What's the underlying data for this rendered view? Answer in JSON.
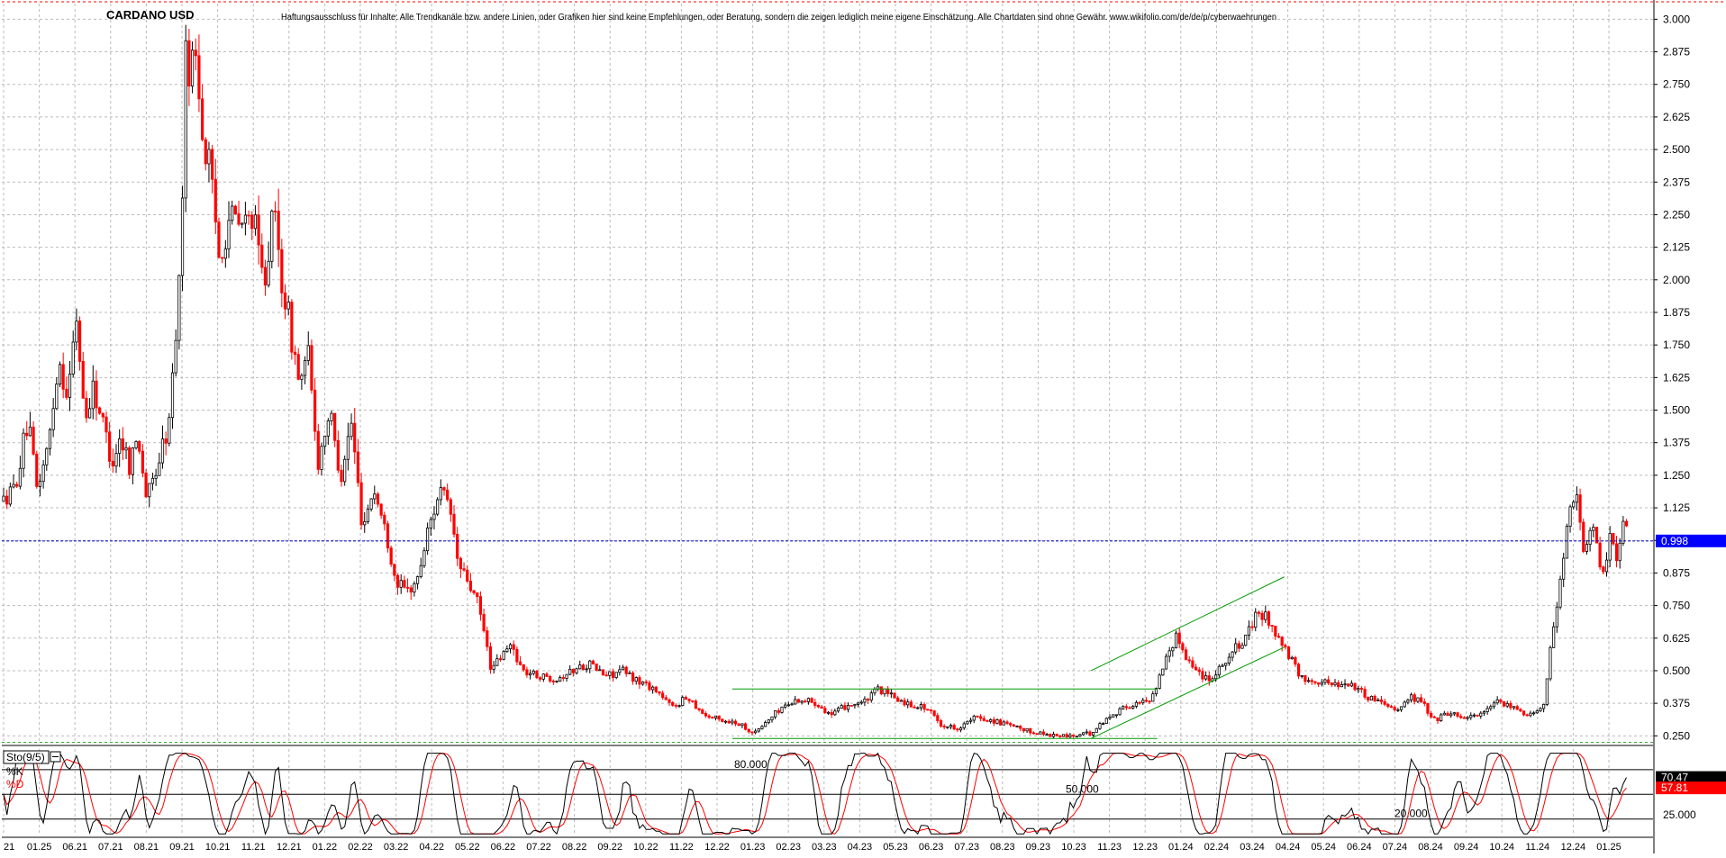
{
  "chart_data": {
    "type": "candlestick",
    "title": "CARDANO USD",
    "disclaimer": "Haftungsausschluss für Inhalte: Alle Trendkanäle bzw. andere Linien, oder Grafiken hier sind keine Empfehlungen, oder Beratung, sondern die zeigen lediglich meine eigene Einschätzung. Alle Chartdaten sind ohne Gewähr. www.wikifolio.com/de/de/p/cyberwaehrungen",
    "price_axis": {
      "range": [
        0.22,
        3.06
      ],
      "ticks": [
        "3.000",
        "2.875",
        "2.750",
        "2.625",
        "2.500",
        "2.375",
        "2.250",
        "2.125",
        "2.000",
        "1.875",
        "1.750",
        "1.625",
        "1.500",
        "1.375",
        "1.250",
        "1.125",
        "1.000",
        "0.875",
        "0.750",
        "0.625",
        "0.500",
        "0.375",
        "0.250"
      ],
      "current_price": 0.998,
      "current_price_label": "0.998"
    },
    "x_ticks": [
      "21",
      "01.25",
      "06.21",
      "07.21",
      "08.21",
      "09.21",
      "10.21",
      "11.21",
      "12.21",
      "01.22",
      "02.22",
      "03.22",
      "04.22",
      "05.22",
      "06.22",
      "07.22",
      "08.22",
      "09.22",
      "10.22",
      "11.22",
      "12.22",
      "01.23",
      "02.23",
      "03.23",
      "04.23",
      "05.23",
      "06.23",
      "07.23",
      "08.23",
      "09.23",
      "10.23",
      "11.23",
      "12.23",
      "01.24",
      "02.24",
      "03.24",
      "04.24",
      "05.24",
      "06.24",
      "07.24",
      "08.24",
      "09.24",
      "10.24",
      "11.24",
      "12.24",
      "01.25"
    ],
    "price_path": [
      {
        "t": 0,
        "p": 1.15
      },
      {
        "t": 10,
        "p": 1.2
      },
      {
        "t": 22,
        "p": 1.45
      },
      {
        "t": 30,
        "p": 1.2
      },
      {
        "t": 40,
        "p": 1.35
      },
      {
        "t": 50,
        "p": 1.7
      },
      {
        "t": 58,
        "p": 1.55
      },
      {
        "t": 66,
        "p": 1.85
      },
      {
        "t": 74,
        "p": 1.45
      },
      {
        "t": 80,
        "p": 1.6
      },
      {
        "t": 90,
        "p": 1.45
      },
      {
        "t": 98,
        "p": 1.3
      },
      {
        "t": 106,
        "p": 1.4
      },
      {
        "t": 114,
        "p": 1.3
      },
      {
        "t": 122,
        "p": 1.4
      },
      {
        "t": 130,
        "p": 1.15
      },
      {
        "t": 140,
        "p": 1.3
      },
      {
        "t": 150,
        "p": 1.45
      },
      {
        "t": 155,
        "p": 1.75
      },
      {
        "t": 160,
        "p": 2.05
      },
      {
        "t": 165,
        "p": 2.85
      },
      {
        "t": 170,
        "p": 2.8
      },
      {
        "t": 175,
        "p": 2.9
      },
      {
        "t": 180,
        "p": 2.55
      },
      {
        "t": 186,
        "p": 2.45
      },
      {
        "t": 195,
        "p": 2.1
      },
      {
        "t": 205,
        "p": 2.25
      },
      {
        "t": 215,
        "p": 2.2
      },
      {
        "t": 225,
        "p": 2.25
      },
      {
        "t": 235,
        "p": 2.0
      },
      {
        "t": 245,
        "p": 2.25
      },
      {
        "t": 252,
        "p": 2.0
      },
      {
        "t": 260,
        "p": 1.8
      },
      {
        "t": 268,
        "p": 1.6
      },
      {
        "t": 276,
        "p": 1.7
      },
      {
        "t": 285,
        "p": 1.3
      },
      {
        "t": 295,
        "p": 1.5
      },
      {
        "t": 305,
        "p": 1.25
      },
      {
        "t": 315,
        "p": 1.45
      },
      {
        "t": 325,
        "p": 1.05
      },
      {
        "t": 335,
        "p": 1.2
      },
      {
        "t": 345,
        "p": 1.05
      },
      {
        "t": 355,
        "p": 0.85
      },
      {
        "t": 365,
        "p": 0.8
      },
      {
        "t": 375,
        "p": 0.85
      },
      {
        "t": 385,
        "p": 1.05
      },
      {
        "t": 395,
        "p": 1.2
      },
      {
        "t": 405,
        "p": 1.1
      },
      {
        "t": 412,
        "p": 0.9
      },
      {
        "t": 420,
        "p": 0.85
      },
      {
        "t": 430,
        "p": 0.75
      },
      {
        "t": 435,
        "p": 0.65
      },
      {
        "t": 442,
        "p": 0.5
      },
      {
        "t": 450,
        "p": 0.55
      },
      {
        "t": 460,
        "p": 0.6
      },
      {
        "t": 470,
        "p": 0.5
      },
      {
        "t": 485,
        "p": 0.48
      },
      {
        "t": 500,
        "p": 0.47
      },
      {
        "t": 515,
        "p": 0.5
      },
      {
        "t": 530,
        "p": 0.53
      },
      {
        "t": 545,
        "p": 0.48
      },
      {
        "t": 560,
        "p": 0.5
      },
      {
        "t": 575,
        "p": 0.46
      },
      {
        "t": 590,
        "p": 0.43
      },
      {
        "t": 605,
        "p": 0.36
      },
      {
        "t": 620,
        "p": 0.4
      },
      {
        "t": 635,
        "p": 0.33
      },
      {
        "t": 650,
        "p": 0.31
      },
      {
        "t": 665,
        "p": 0.3
      },
      {
        "t": 680,
        "p": 0.26
      },
      {
        "t": 690,
        "p": 0.3
      },
      {
        "t": 705,
        "p": 0.36
      },
      {
        "t": 720,
        "p": 0.39
      },
      {
        "t": 735,
        "p": 0.38
      },
      {
        "t": 750,
        "p": 0.33
      },
      {
        "t": 765,
        "p": 0.37
      },
      {
        "t": 780,
        "p": 0.38
      },
      {
        "t": 792,
        "p": 0.43
      },
      {
        "t": 805,
        "p": 0.4
      },
      {
        "t": 820,
        "p": 0.37
      },
      {
        "t": 835,
        "p": 0.36
      },
      {
        "t": 850,
        "p": 0.29
      },
      {
        "t": 865,
        "p": 0.28
      },
      {
        "t": 880,
        "p": 0.32
      },
      {
        "t": 895,
        "p": 0.31
      },
      {
        "t": 910,
        "p": 0.29
      },
      {
        "t": 925,
        "p": 0.27
      },
      {
        "t": 940,
        "p": 0.26
      },
      {
        "t": 955,
        "p": 0.25
      },
      {
        "t": 970,
        "p": 0.25
      },
      {
        "t": 985,
        "p": 0.26
      },
      {
        "t": 995,
        "p": 0.3
      },
      {
        "t": 1010,
        "p": 0.35
      },
      {
        "t": 1025,
        "p": 0.37
      },
      {
        "t": 1038,
        "p": 0.39
      },
      {
        "t": 1045,
        "p": 0.45
      },
      {
        "t": 1055,
        "p": 0.58
      },
      {
        "t": 1063,
        "p": 0.63
      },
      {
        "t": 1072,
        "p": 0.55
      },
      {
        "t": 1080,
        "p": 0.5
      },
      {
        "t": 1092,
        "p": 0.47
      },
      {
        "t": 1105,
        "p": 0.53
      },
      {
        "t": 1115,
        "p": 0.58
      },
      {
        "t": 1125,
        "p": 0.62
      },
      {
        "t": 1135,
        "p": 0.72
      },
      {
        "t": 1145,
        "p": 0.7
      },
      {
        "t": 1155,
        "p": 0.62
      },
      {
        "t": 1165,
        "p": 0.55
      },
      {
        "t": 1175,
        "p": 0.47
      },
      {
        "t": 1190,
        "p": 0.46
      },
      {
        "t": 1205,
        "p": 0.45
      },
      {
        "t": 1220,
        "p": 0.45
      },
      {
        "t": 1235,
        "p": 0.4
      },
      {
        "t": 1250,
        "p": 0.38
      },
      {
        "t": 1262,
        "p": 0.35
      },
      {
        "t": 1275,
        "p": 0.4
      },
      {
        "t": 1285,
        "p": 0.38
      },
      {
        "t": 1295,
        "p": 0.31
      },
      {
        "t": 1310,
        "p": 0.34
      },
      {
        "t": 1325,
        "p": 0.32
      },
      {
        "t": 1340,
        "p": 0.34
      },
      {
        "t": 1355,
        "p": 0.38
      },
      {
        "t": 1370,
        "p": 0.35
      },
      {
        "t": 1385,
        "p": 0.33
      },
      {
        "t": 1395,
        "p": 0.38
      },
      {
        "t": 1400,
        "p": 0.55
      },
      {
        "t": 1405,
        "p": 0.7
      },
      {
        "t": 1412,
        "p": 0.9
      },
      {
        "t": 1418,
        "p": 1.1
      },
      {
        "t": 1425,
        "p": 1.15
      },
      {
        "t": 1432,
        "p": 0.95
      },
      {
        "t": 1440,
        "p": 1.05
      },
      {
        "t": 1448,
        "p": 0.85
      },
      {
        "t": 1456,
        "p": 1.05
      },
      {
        "t": 1462,
        "p": 0.92
      },
      {
        "t": 1468,
        "p": 1.1
      },
      {
        "t": 1472,
        "p": 0.98
      }
    ],
    "trend_lines": [
      {
        "t1": 660,
        "p1": 0.43,
        "t2": 1045,
        "p2": 0.43
      },
      {
        "t1": 660,
        "p1": 0.24,
        "t2": 1045,
        "p2": 0.24
      },
      {
        "t1": 985,
        "p1": 0.5,
        "t2": 1160,
        "p2": 0.86
      },
      {
        "t1": 985,
        "p1": 0.24,
        "t2": 1160,
        "p2": 0.59
      }
    ],
    "stochastic": {
      "label": "Sto(9/5)",
      "k_label": "%K",
      "d_label": "%D",
      "k_value": 70.47,
      "k_value_label": "70.47",
      "d_value": 57.81,
      "d_value_label": "57.81",
      "levels": [
        80,
        50,
        20
      ],
      "level_labels": [
        "80.000",
        "50.000",
        "20.000"
      ],
      "axis_tick": "25.000",
      "range": [
        0,
        105
      ]
    },
    "colors": {
      "bull": "#000000",
      "bear": "#ff0000",
      "grid": "#bbbbbb",
      "current_price_line": "#0000cc",
      "current_price_box": "#0000ff",
      "trend": "#009900",
      "k_line": "#000000",
      "d_line": "#ff0000",
      "k_box": "#000000",
      "d_box": "#ff0000"
    }
  }
}
